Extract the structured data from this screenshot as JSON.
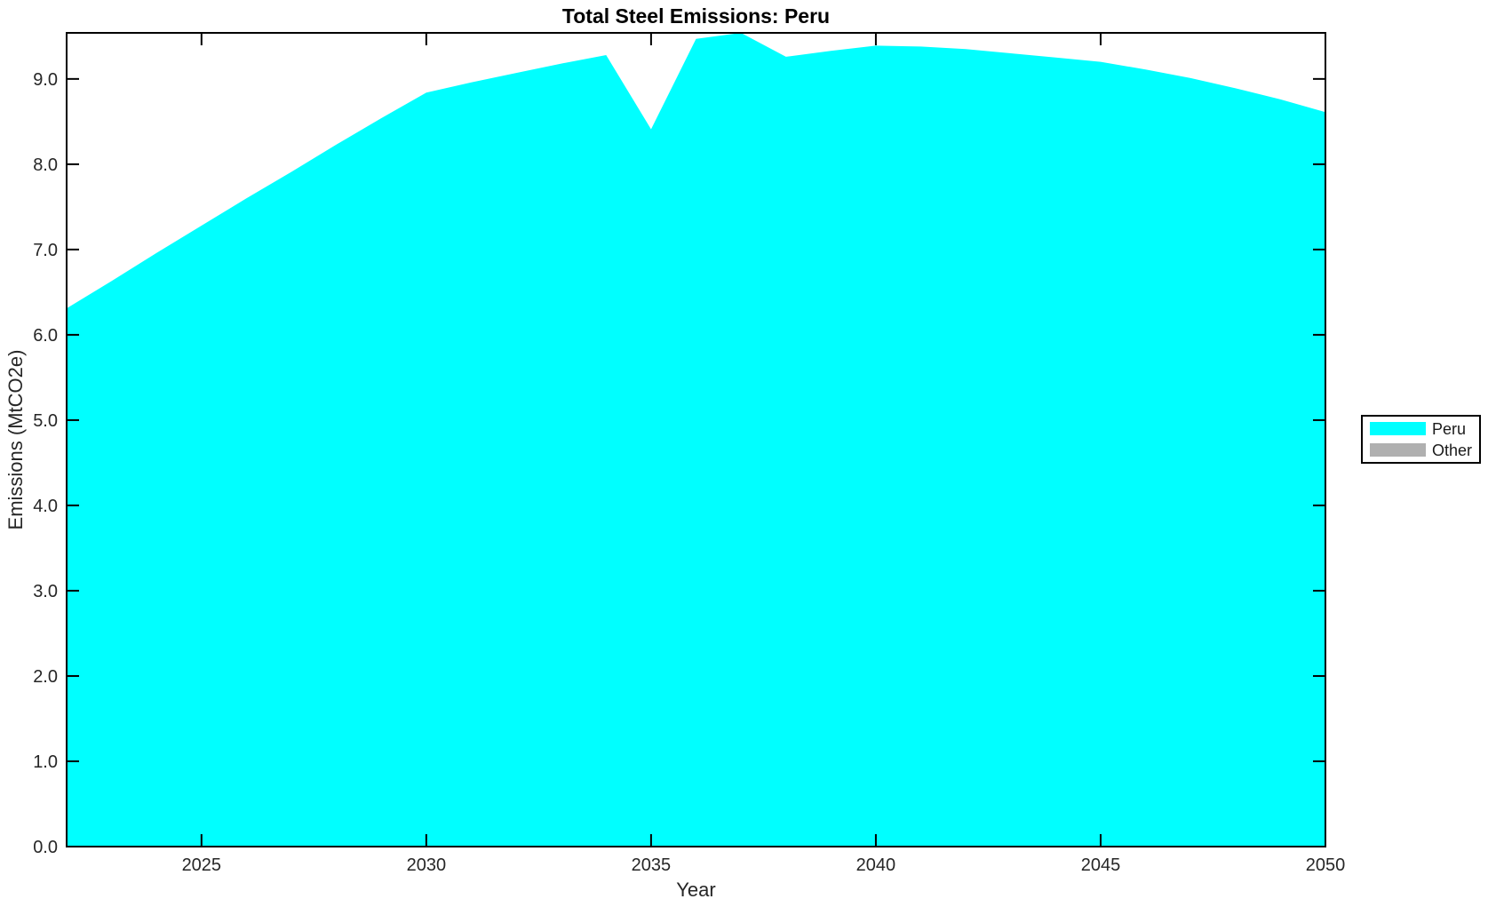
{
  "chart_data": {
    "type": "area",
    "title": "Total Steel Emissions: Peru",
    "xlabel": "Year",
    "ylabel": "Emissions (MtCO2e)",
    "x": [
      2022,
      2023,
      2024,
      2025,
      2026,
      2027,
      2028,
      2029,
      2030,
      2031,
      2032,
      2033,
      2034,
      2035,
      2036,
      2037,
      2038,
      2039,
      2040,
      2041,
      2042,
      2043,
      2044,
      2045,
      2046,
      2047,
      2048,
      2049,
      2050
    ],
    "series": [
      {
        "name": "Peru",
        "color": "#00FFFF",
        "values": [
          6.31,
          6.63,
          6.96,
          7.28,
          7.6,
          7.91,
          8.23,
          8.54,
          8.84,
          8.96,
          9.07,
          9.18,
          9.28,
          8.41,
          9.47,
          9.54,
          9.26,
          9.33,
          9.39,
          9.38,
          9.35,
          9.3,
          9.25,
          9.2,
          9.11,
          9.01,
          8.89,
          8.76,
          8.61
        ]
      },
      {
        "name": "Other",
        "color": "#B0B0B0",
        "values": [
          0,
          0,
          0,
          0,
          0,
          0,
          0,
          0,
          0,
          0,
          0,
          0,
          0,
          0,
          0,
          0,
          0,
          0,
          0,
          0,
          0,
          0,
          0,
          0,
          0,
          0,
          0,
          0,
          0
        ]
      }
    ],
    "xlim": [
      2022,
      2050
    ],
    "ylim": [
      0,
      9.54
    ],
    "xticks": [
      2025,
      2030,
      2035,
      2040,
      2045,
      2050
    ],
    "yticks": [
      0,
      1,
      2,
      3,
      4,
      5,
      6,
      7,
      8,
      9
    ],
    "grid": false,
    "legend_position": "right-outside",
    "axis_color": "#000000",
    "tick_label_color": "#262626",
    "background_color": "#ffffff"
  }
}
